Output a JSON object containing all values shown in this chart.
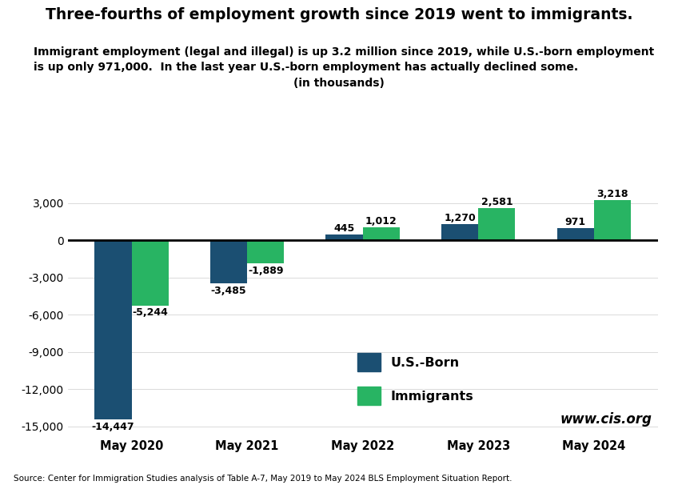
{
  "title": "Three-fourths of employment growth since 2019 went to immigrants.",
  "subtitle_line1": "Immigrant employment (legal and illegal) is up 3.2 million since 2019, while U.S.-born employment",
  "subtitle_line2": "is up only 971,000.  In the last year U.S.-born employment has actually declined some.",
  "subtitle_line3": "(in thousands)",
  "categories": [
    "May 2020",
    "May 2021",
    "May 2022",
    "May 2023",
    "May 2024"
  ],
  "us_born": [
    -14447,
    -3485,
    445,
    1270,
    971
  ],
  "immigrants": [
    -5244,
    -1889,
    1012,
    2581,
    3218
  ],
  "us_born_color": "#1b4f72",
  "immigrants_color": "#28b463",
  "background_color": "#ffffff",
  "ylim": [
    -15800,
    4500
  ],
  "yticks": [
    -15000,
    -12000,
    -9000,
    -6000,
    -3000,
    0,
    3000
  ],
  "source_text": "Source: Center for Immigration Studies analysis of Table A-7, May 2019 to May 2024 BLS Employment Situation Report.",
  "watermark": "www.cis.org",
  "legend_labels": [
    "U.S.-Born",
    "Immigrants"
  ],
  "bar_width": 0.32
}
